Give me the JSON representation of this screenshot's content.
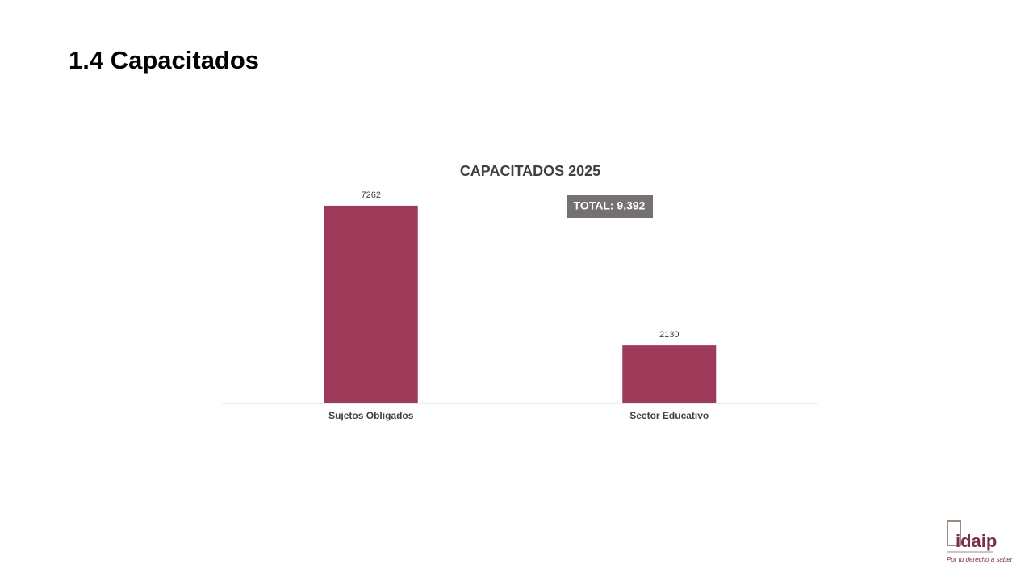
{
  "heading": "1.4 Capacitados",
  "chart_data": {
    "type": "bar",
    "title": "CAPACITADOS 2025",
    "categories": [
      "Sujetos Obligados",
      "Sector Educativo"
    ],
    "values": [
      7262,
      2130
    ],
    "color": "#9e3a5a",
    "ylim": [
      0,
      8000
    ],
    "annotation": "TOTAL: 9,392"
  },
  "logo": {
    "name": "idaip",
    "tagline": "Por tu derecho a saber"
  }
}
